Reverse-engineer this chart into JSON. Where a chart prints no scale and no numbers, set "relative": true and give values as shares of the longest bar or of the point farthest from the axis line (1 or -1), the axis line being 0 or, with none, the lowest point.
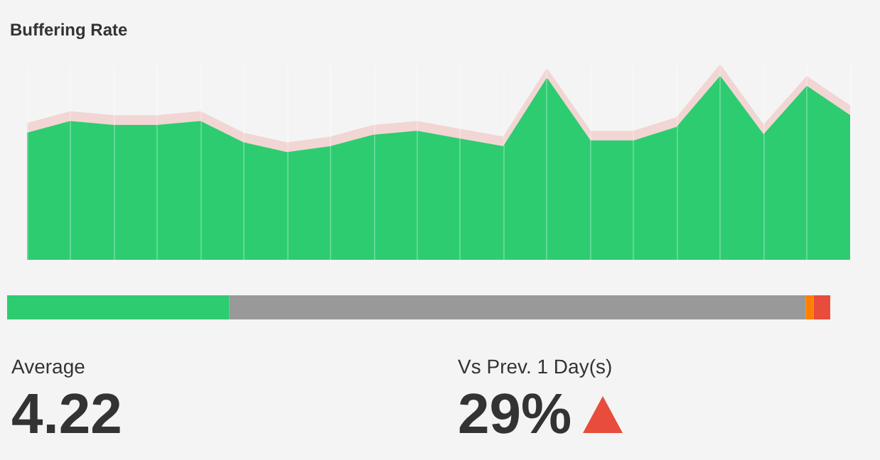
{
  "chart_data": [
    {
      "type": "area",
      "title": "Buffering Rate",
      "relative": true,
      "stacked": true,
      "grid": "x",
      "categories": [
        null,
        null,
        null,
        null,
        null,
        null,
        null,
        null,
        null,
        null,
        null,
        null,
        null,
        null,
        null,
        null,
        null,
        null,
        null,
        null
      ],
      "series": [
        {
          "color": "#2ecc71",
          "values": [
            0.65,
            0.71,
            0.69,
            0.69,
            0.71,
            0.6,
            0.55,
            0.58,
            0.64,
            0.66,
            0.62,
            0.58,
            0.93,
            0.61,
            0.61,
            0.68,
            0.94,
            0.64,
            0.89,
            0.74
          ]
        },
        {
          "color": "#f2d6d4",
          "values": [
            0.05,
            0.05,
            0.05,
            0.05,
            0.05,
            0.05,
            0.05,
            0.05,
            0.05,
            0.05,
            0.05,
            0.05,
            0.05,
            0.05,
            0.05,
            0.05,
            0.06,
            0.05,
            0.05,
            0.05
          ]
        }
      ]
    },
    {
      "type": "bar",
      "orientation": "horizontal",
      "stacked": true,
      "relative": true,
      "categories": [
        null
      ],
      "series": [
        {
          "color": "#2ecc71",
          "values": [
            0.27
          ]
        },
        {
          "color": "#999999",
          "values": [
            0.7
          ]
        },
        {
          "color": "#ff8000",
          "values": [
            0.01
          ]
        },
        {
          "color": "#e74c3c",
          "values": [
            0.02
          ]
        }
      ]
    },
    {
      "type": "other",
      "title": "Average",
      "annotations": [
        "4.22"
      ]
    },
    {
      "type": "other",
      "title": "Vs Prev. 1 Day(s)",
      "annotations": [
        "29%"
      ]
    }
  ]
}
